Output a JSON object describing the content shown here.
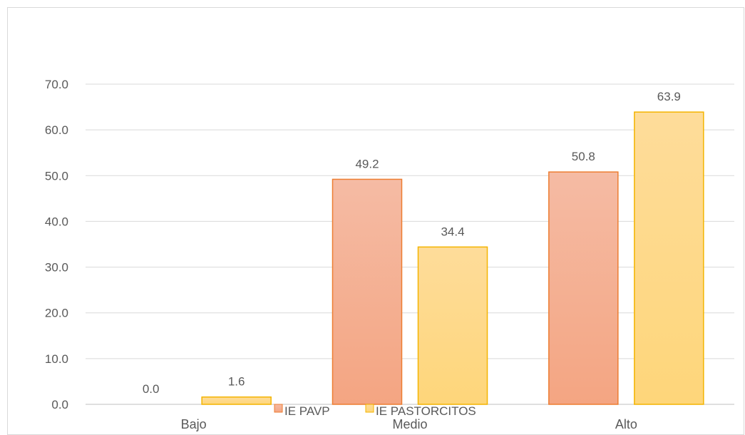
{
  "chart_data": {
    "type": "bar",
    "categories": [
      "Bajo",
      "Medio",
      "Alto"
    ],
    "series": [
      {
        "name": "IE PAVP",
        "values": [
          0.0,
          49.2,
          50.8
        ],
        "color": "#f4a582",
        "border": "#ed7d31"
      },
      {
        "name": "IE PASTORCITOS",
        "values": [
          1.6,
          34.4,
          63.9
        ],
        "color": "#fed880",
        "border": "#f4b400"
      }
    ],
    "value_labels": [
      [
        "0.0",
        "49.2",
        "50.8"
      ],
      [
        "1.6",
        "34.4",
        "63.9"
      ]
    ],
    "y_ticks": [
      "0.0",
      "10.0",
      "20.0",
      "30.0",
      "40.0",
      "50.0",
      "60.0",
      "70.0"
    ],
    "ylim": [
      0,
      70
    ],
    "grid": true,
    "legend_position": "bottom"
  }
}
